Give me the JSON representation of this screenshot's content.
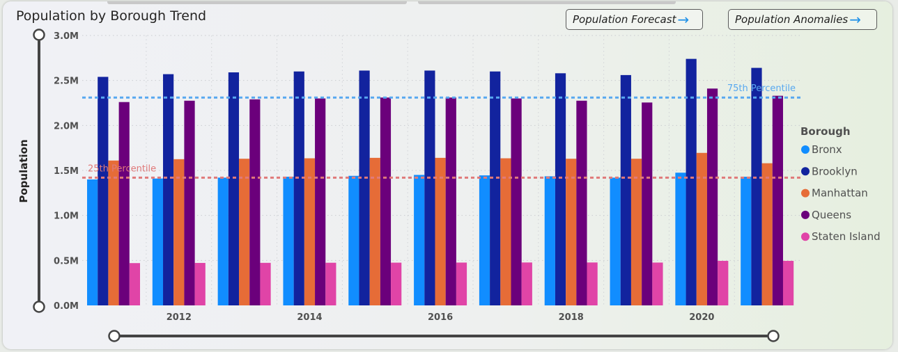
{
  "header": {
    "title": "Population by Borough Trend",
    "forecast_button": "Population Forecast",
    "anomalies_button": "Population Anomalies"
  },
  "icons": {
    "nav_arrow": "arrow-right-icon"
  },
  "chart_data": {
    "type": "bar",
    "title": "Population by Borough Trend",
    "ylabel": "Population",
    "xlabel": "",
    "ylim": [
      0,
      3000000
    ],
    "yticks": [
      0,
      500000,
      1000000,
      1500000,
      2000000,
      2500000,
      3000000
    ],
    "ytick_labels": [
      "0.0M",
      "0.5M",
      "1.0M",
      "1.5M",
      "2.0M",
      "2.5M",
      "3.0M"
    ],
    "x": [
      2011,
      2012,
      2013,
      2014,
      2015,
      2016,
      2017,
      2018,
      2019,
      2020,
      2021
    ],
    "xtick_labels": [
      "2012",
      "2014",
      "2016",
      "2018",
      "2020"
    ],
    "legend_title": "Borough",
    "legend_position": "right",
    "grid": true,
    "series": [
      {
        "name": "Bronx",
        "color": "#118dff",
        "values": [
          1400000,
          1410000,
          1420000,
          1430000,
          1440000,
          1450000,
          1445000,
          1435000,
          1420000,
          1475000,
          1430000
        ]
      },
      {
        "name": "Brooklyn",
        "color": "#12239e",
        "values": [
          2540000,
          2570000,
          2590000,
          2600000,
          2610000,
          2610000,
          2600000,
          2580000,
          2560000,
          2740000,
          2640000
        ]
      },
      {
        "name": "Manhattan",
        "color": "#e66c37",
        "values": [
          1610000,
          1625000,
          1630000,
          1635000,
          1640000,
          1640000,
          1635000,
          1630000,
          1630000,
          1695000,
          1580000
        ]
      },
      {
        "name": "Queens",
        "color": "#6b007b",
        "values": [
          2260000,
          2275000,
          2290000,
          2300000,
          2310000,
          2310000,
          2300000,
          2275000,
          2255000,
          2410000,
          2330000
        ]
      },
      {
        "name": "Staten Island",
        "color": "#e044a7",
        "values": [
          470000,
          472000,
          473000,
          474000,
          475000,
          476000,
          477000,
          477000,
          476000,
          495000,
          495000
        ]
      }
    ],
    "reference_lines": [
      {
        "label": "75th Percentile",
        "value": 2310000,
        "color": "#58a8f0"
      },
      {
        "label": "25th Percentile",
        "value": 1420000,
        "color": "#e07a7a"
      }
    ]
  }
}
